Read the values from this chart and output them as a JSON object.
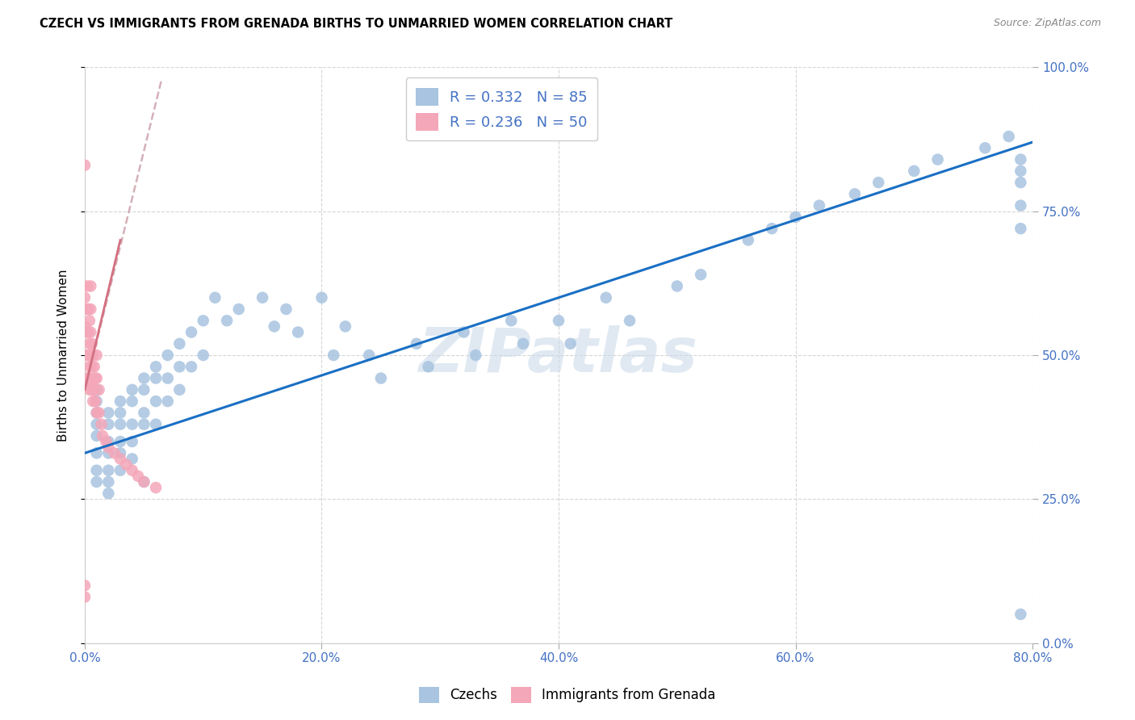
{
  "title": "CZECH VS IMMIGRANTS FROM GRENADA BIRTHS TO UNMARRIED WOMEN CORRELATION CHART",
  "source": "Source: ZipAtlas.com",
  "ylabel": "Births to Unmarried Women",
  "xlim": [
    0.0,
    0.8
  ],
  "ylim": [
    0.0,
    1.0
  ],
  "czech_R": 0.332,
  "czech_N": 85,
  "grenada_R": 0.236,
  "grenada_N": 50,
  "czech_color": "#a8c4e0",
  "grenada_color": "#f4a7b9",
  "trendline_czech_color": "#1a6fc4",
  "trendline_grenada_color": "#d47080",
  "trendline_grenada_dash_color": "#d4b0b8",
  "watermark": "ZIPatlas",
  "watermark_color": "#c8d8e8",
  "czech_scatter_x": [
    0.01,
    0.01,
    0.01,
    0.01,
    0.01,
    0.01,
    0.01,
    0.01,
    0.02,
    0.02,
    0.02,
    0.02,
    0.02,
    0.02,
    0.02,
    0.03,
    0.03,
    0.03,
    0.03,
    0.03,
    0.03,
    0.04,
    0.04,
    0.04,
    0.04,
    0.04,
    0.05,
    0.05,
    0.05,
    0.05,
    0.06,
    0.06,
    0.06,
    0.06,
    0.07,
    0.07,
    0.07,
    0.08,
    0.08,
    0.08,
    0.09,
    0.09,
    0.1,
    0.1,
    0.11,
    0.12,
    0.13,
    0.15,
    0.16,
    0.17,
    0.18,
    0.2,
    0.21,
    0.22,
    0.24,
    0.25,
    0.28,
    0.29,
    0.32,
    0.33,
    0.36,
    0.37,
    0.4,
    0.41,
    0.44,
    0.46,
    0.5,
    0.52,
    0.56,
    0.58,
    0.6,
    0.62,
    0.65,
    0.67,
    0.7,
    0.72,
    0.76,
    0.78,
    0.79,
    0.79,
    0.79,
    0.79,
    0.79,
    0.79,
    0.05
  ],
  "czech_scatter_y": [
    0.36,
    0.38,
    0.4,
    0.42,
    0.44,
    0.33,
    0.3,
    0.28,
    0.4,
    0.38,
    0.35,
    0.33,
    0.3,
    0.28,
    0.26,
    0.42,
    0.4,
    0.38,
    0.35,
    0.33,
    0.3,
    0.44,
    0.42,
    0.38,
    0.35,
    0.32,
    0.46,
    0.44,
    0.4,
    0.38,
    0.48,
    0.46,
    0.42,
    0.38,
    0.5,
    0.46,
    0.42,
    0.52,
    0.48,
    0.44,
    0.54,
    0.48,
    0.56,
    0.5,
    0.6,
    0.56,
    0.58,
    0.6,
    0.55,
    0.58,
    0.54,
    0.6,
    0.5,
    0.55,
    0.5,
    0.46,
    0.52,
    0.48,
    0.54,
    0.5,
    0.56,
    0.52,
    0.56,
    0.52,
    0.6,
    0.56,
    0.62,
    0.64,
    0.7,
    0.72,
    0.74,
    0.76,
    0.78,
    0.8,
    0.82,
    0.84,
    0.86,
    0.88,
    0.05,
    0.72,
    0.76,
    0.8,
    0.82,
    0.84,
    0.28
  ],
  "grenada_scatter_x": [
    0.0,
    0.0,
    0.0,
    0.0,
    0.0,
    0.002,
    0.002,
    0.002,
    0.002,
    0.002,
    0.003,
    0.003,
    0.003,
    0.003,
    0.004,
    0.004,
    0.004,
    0.004,
    0.005,
    0.005,
    0.005,
    0.005,
    0.005,
    0.006,
    0.006,
    0.006,
    0.007,
    0.007,
    0.007,
    0.008,
    0.008,
    0.009,
    0.009,
    0.01,
    0.01,
    0.01,
    0.012,
    0.012,
    0.014,
    0.015,
    0.018,
    0.02,
    0.025,
    0.03,
    0.035,
    0.04,
    0.045,
    0.05,
    0.06,
    0.0
  ],
  "grenada_scatter_y": [
    0.83,
    0.6,
    0.55,
    0.5,
    0.08,
    0.62,
    0.58,
    0.54,
    0.5,
    0.46,
    0.58,
    0.54,
    0.5,
    0.46,
    0.56,
    0.52,
    0.48,
    0.44,
    0.62,
    0.58,
    0.54,
    0.5,
    0.45,
    0.52,
    0.48,
    0.44,
    0.5,
    0.46,
    0.42,
    0.48,
    0.44,
    0.46,
    0.42,
    0.5,
    0.46,
    0.4,
    0.44,
    0.4,
    0.38,
    0.36,
    0.35,
    0.34,
    0.33,
    0.32,
    0.31,
    0.3,
    0.29,
    0.28,
    0.27,
    0.1
  ],
  "czech_trendline_x": [
    0.0,
    0.8
  ],
  "czech_trendline_y": [
    0.33,
    0.87
  ],
  "grenada_trendline_x": [
    0.0,
    0.065
  ],
  "grenada_trendline_y": [
    0.44,
    0.98
  ]
}
